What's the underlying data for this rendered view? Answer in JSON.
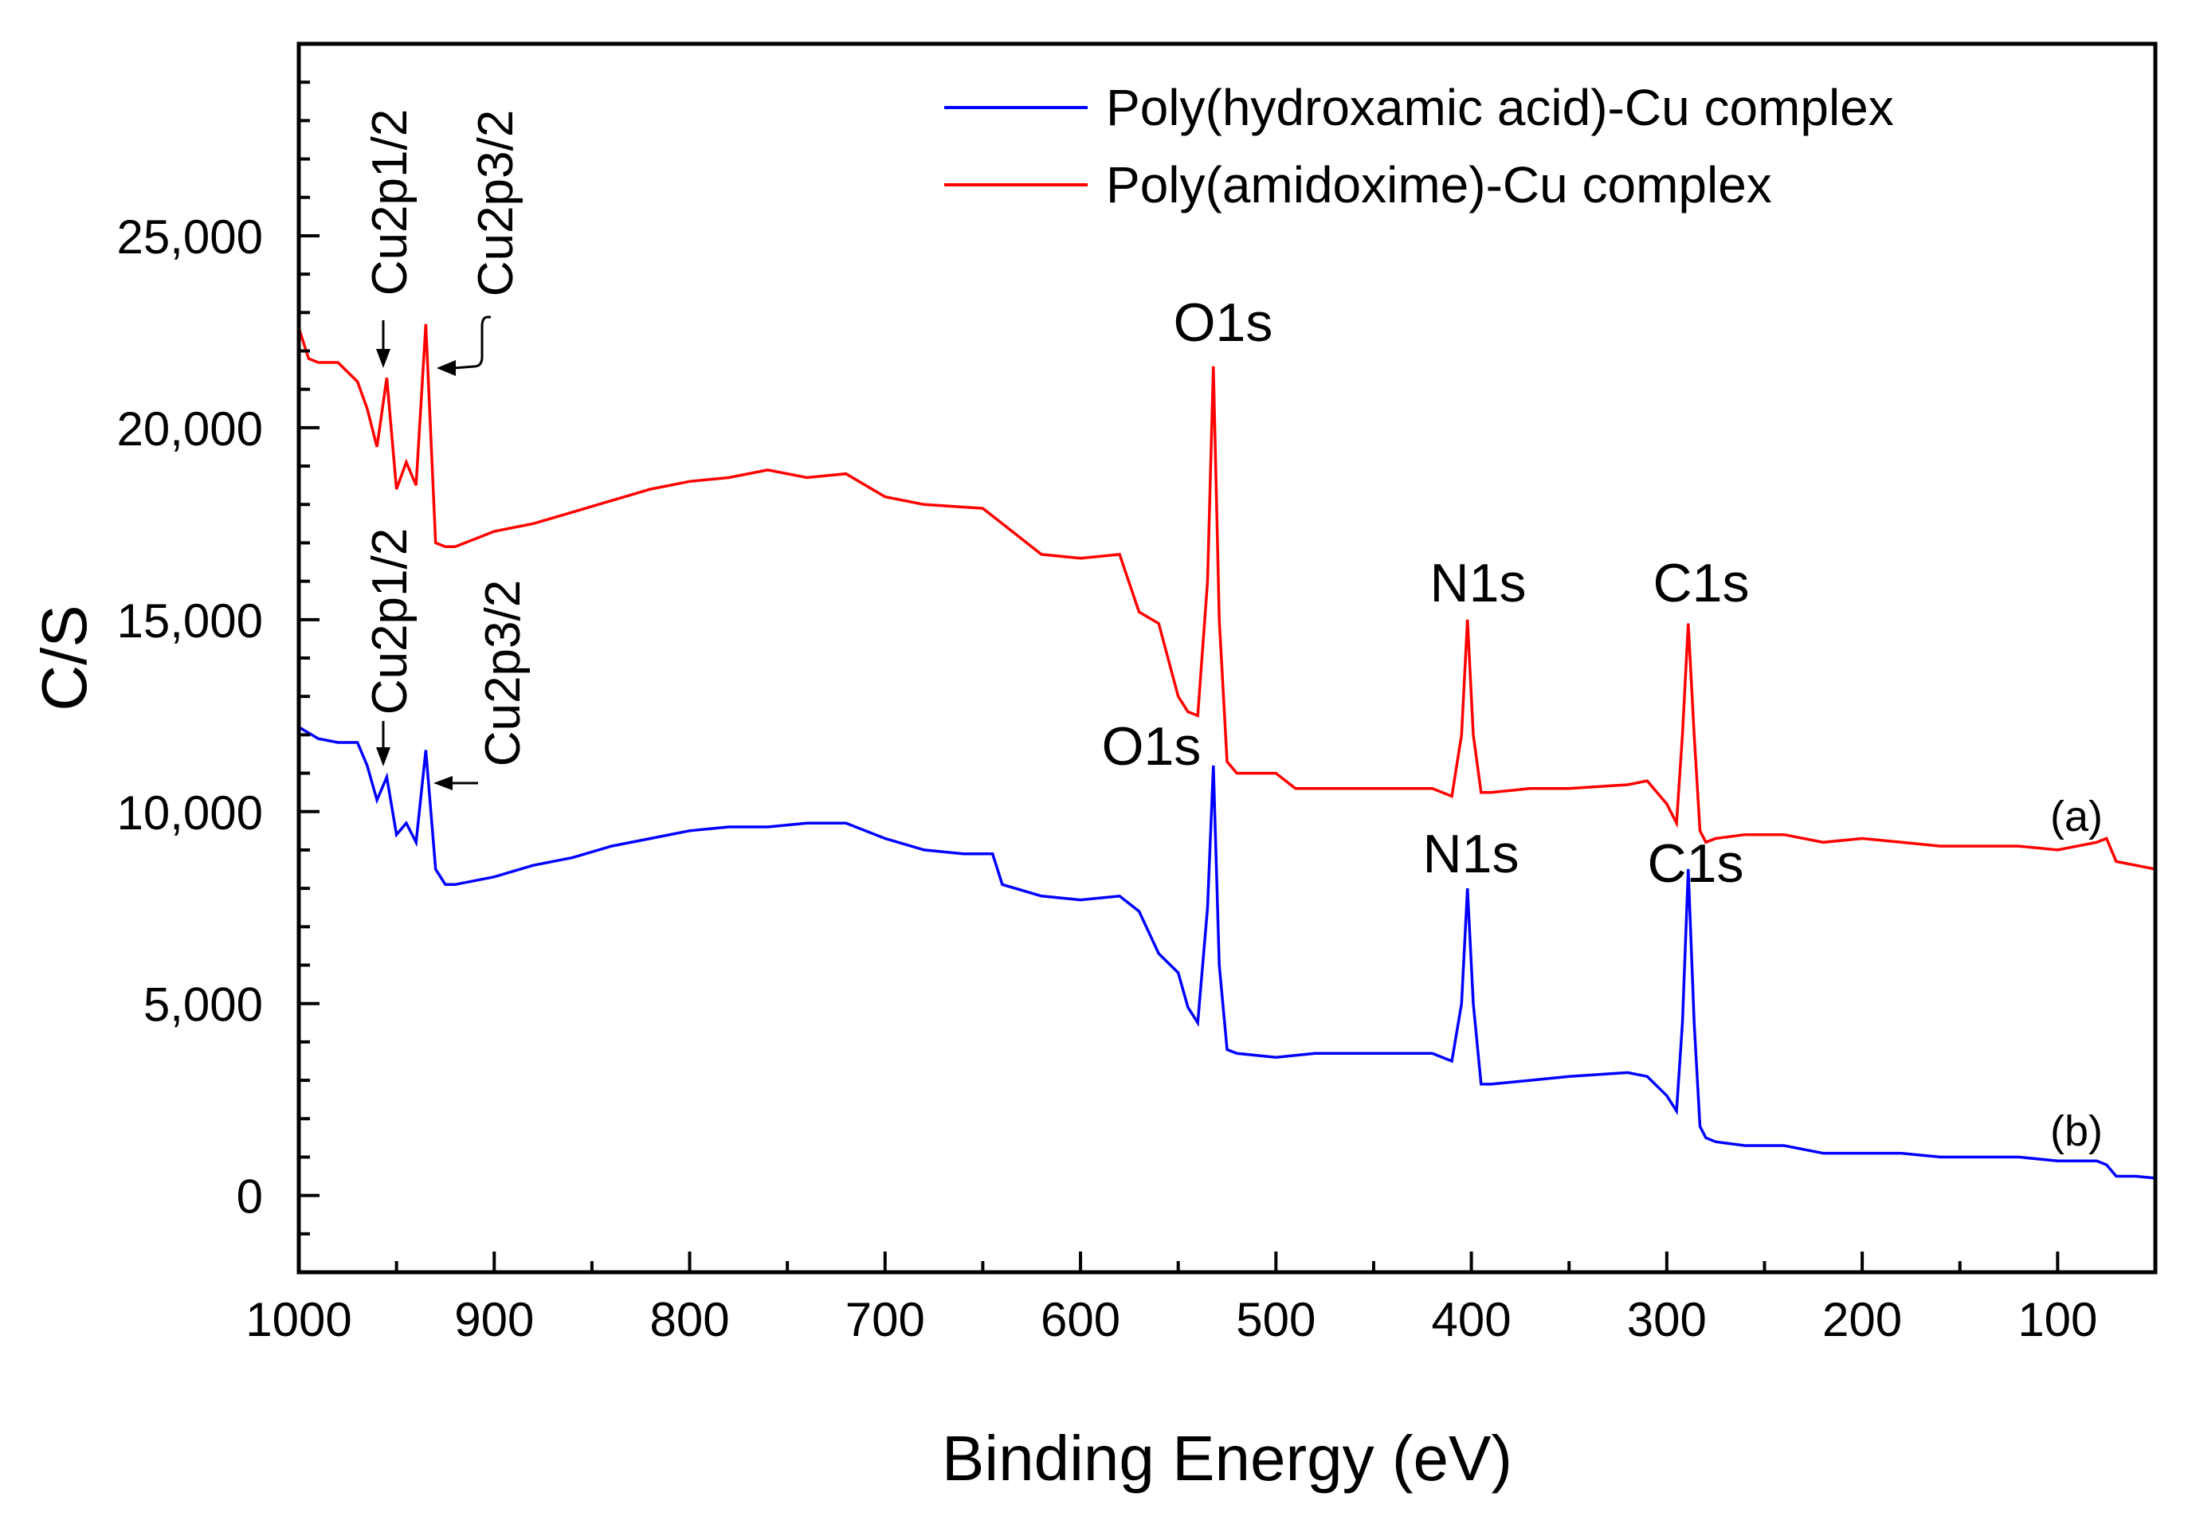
{
  "chart_data": {
    "type": "line",
    "xlabel": "Binding Energy (eV)",
    "ylabel": "C/S",
    "xlim": [
      1000,
      50
    ],
    "ylim": [
      -2000,
      30000
    ],
    "x_ticks": [
      1000,
      900,
      800,
      700,
      600,
      500,
      400,
      300,
      200,
      100
    ],
    "y_ticks": [
      0,
      5000,
      10000,
      15000,
      20000,
      25000
    ],
    "y_tick_labels": [
      "0",
      "5,000",
      "10,000",
      "15,000",
      "20,000",
      "25,000"
    ],
    "legend": {
      "position": "top-right"
    },
    "series": [
      {
        "name": "Poly(hydroxamic acid)-Cu complex",
        "label": "(b)",
        "color": "#0000ff",
        "x": [
          1000,
          990,
          980,
          970,
          965,
          960,
          955,
          950,
          945,
          940,
          935,
          930,
          925,
          920,
          900,
          880,
          860,
          840,
          820,
          800,
          780,
          760,
          740,
          720,
          700,
          680,
          660,
          645,
          640,
          620,
          600,
          580,
          570,
          560,
          550,
          545,
          540,
          535,
          532,
          529,
          525,
          520,
          500,
          480,
          450,
          420,
          410,
          405,
          402,
          399,
          395,
          390,
          370,
          350,
          320,
          310,
          300,
          295,
          292,
          289,
          286,
          283,
          280,
          275,
          260,
          240,
          220,
          200,
          180,
          160,
          140,
          120,
          100,
          80,
          75,
          70,
          60,
          50
        ],
        "y": [
          12200,
          11900,
          11800,
          11800,
          11200,
          10300,
          10900,
          9400,
          9700,
          9200,
          11600,
          8500,
          8100,
          8100,
          8300,
          8600,
          8800,
          9100,
          9300,
          9500,
          9600,
          9600,
          9700,
          9700,
          9300,
          9000,
          8900,
          8900,
          8100,
          7800,
          7700,
          7800,
          7400,
          6300,
          5800,
          4900,
          4500,
          7500,
          11200,
          6000,
          3800,
          3700,
          3600,
          3700,
          3700,
          3700,
          3500,
          5000,
          8000,
          5000,
          2900,
          2900,
          3000,
          3100,
          3200,
          3100,
          2600,
          2200,
          4500,
          8500,
          4500,
          1800,
          1500,
          1400,
          1300,
          1300,
          1100,
          1100,
          1100,
          1000,
          1000,
          1000,
          900,
          900,
          800,
          500,
          500,
          450
        ]
      },
      {
        "name": "Poly(amidoxime)-Cu complex",
        "label": "(a)",
        "color": "#ff0000",
        "x": [
          1000,
          995,
          990,
          980,
          970,
          965,
          960,
          955,
          950,
          945,
          940,
          935,
          930,
          925,
          920,
          900,
          880,
          860,
          840,
          820,
          800,
          780,
          760,
          740,
          720,
          700,
          680,
          650,
          640,
          620,
          600,
          580,
          570,
          560,
          550,
          545,
          540,
          535,
          532,
          529,
          525,
          520,
          500,
          490,
          450,
          420,
          410,
          405,
          402,
          399,
          395,
          390,
          370,
          350,
          320,
          310,
          300,
          295,
          292,
          289,
          286,
          283,
          280,
          275,
          260,
          240,
          220,
          200,
          180,
          160,
          140,
          120,
          100,
          80,
          75,
          70,
          60,
          50
        ],
        "y": [
          22600,
          21800,
          21700,
          21700,
          21200,
          20500,
          19500,
          21300,
          18400,
          19100,
          18500,
          22700,
          17000,
          16900,
          16900,
          17300,
          17500,
          17800,
          18100,
          18400,
          18600,
          18700,
          18900,
          18700,
          18800,
          18200,
          18000,
          17900,
          17500,
          16700,
          16600,
          16700,
          15200,
          14900,
          13000,
          12600,
          12500,
          16000,
          21600,
          15000,
          11300,
          11000,
          11000,
          10600,
          10600,
          10600,
          10400,
          12000,
          15000,
          12000,
          10500,
          10500,
          10600,
          10600,
          10700,
          10800,
          10200,
          9700,
          12000,
          14900,
          12000,
          9500,
          9200,
          9300,
          9400,
          9400,
          9200,
          9300,
          9200,
          9100,
          9100,
          9100,
          9000,
          9200,
          9300,
          8700,
          8600,
          8500
        ]
      }
    ],
    "annotations": [
      {
        "text": "Cu2p1/2",
        "series": "(a)"
      },
      {
        "text": "Cu2p3/2",
        "series": "(a)"
      },
      {
        "text": "O1s",
        "series": "(a)"
      },
      {
        "text": "N1s",
        "series": "(a)"
      },
      {
        "text": "C1s",
        "series": "(a)"
      },
      {
        "text": "Cu2p1/2",
        "series": "(b)"
      },
      {
        "text": "Cu2p3/2",
        "series": "(b)"
      },
      {
        "text": "O1s",
        "series": "(b)"
      },
      {
        "text": "N1s",
        "series": "(b)"
      },
      {
        "text": "C1s",
        "series": "(b)"
      }
    ]
  }
}
